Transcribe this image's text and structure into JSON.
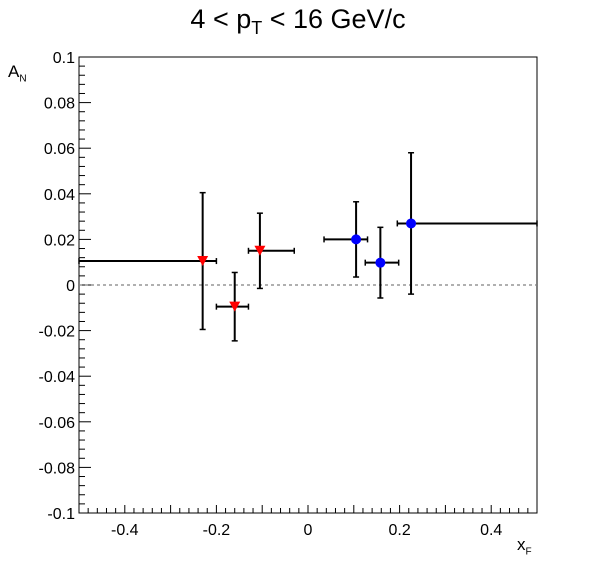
{
  "chart_data": {
    "type": "scatter",
    "title_parts": [
      "4 < p",
      "T",
      " < 16 GeV/c"
    ],
    "xlabel_parts": [
      "x",
      "F"
    ],
    "ylabel_parts": [
      "A",
      "N"
    ],
    "xlim": [
      -0.5,
      0.5
    ],
    "ylim": [
      -0.1,
      0.1
    ],
    "x_ticks": [
      -0.4,
      -0.2,
      0,
      0.2,
      0.4
    ],
    "x_tick_labels": [
      "-0.4",
      "-0.2",
      "0",
      "0.2",
      "0.4"
    ],
    "y_ticks": [
      -0.1,
      -0.08,
      -0.06,
      -0.04,
      -0.02,
      0,
      0.02,
      0.04,
      0.06,
      0.08,
      0.1
    ],
    "y_tick_labels": [
      "-0.1",
      "-0.08",
      "-0.06",
      "-0.04",
      "-0.02",
      "0",
      "0.02",
      "0.04",
      "0.06",
      "0.08",
      "0.1"
    ],
    "reference_line": {
      "y": 0,
      "style": "dashed",
      "color": "#808080"
    },
    "grid": false,
    "series": [
      {
        "marker": "triangle-down",
        "color": "#ff0000",
        "points": [
          {
            "x": -0.23,
            "y": 0.0105,
            "xerr_low": 0.27,
            "xerr_high": 0.03,
            "yerr": 0.03
          },
          {
            "x": -0.16,
            "y": -0.0095,
            "xerr_low": 0.04,
            "xerr_high": 0.03,
            "yerr": 0.015
          },
          {
            "x": -0.105,
            "y": 0.015,
            "xerr_low": 0.025,
            "xerr_high": 0.075,
            "yerr": 0.0165
          }
        ]
      },
      {
        "marker": "circle",
        "color": "#0000ff",
        "points": [
          {
            "x": 0.105,
            "y": 0.02,
            "xerr_low": 0.07,
            "xerr_high": 0.025,
            "yerr": 0.0165
          },
          {
            "x": 0.158,
            "y": 0.0098,
            "xerr_low": 0.033,
            "xerr_high": 0.04,
            "yerr": 0.0155
          },
          {
            "x": 0.225,
            "y": 0.027,
            "xerr_low": 0.03,
            "xerr_high": 0.275,
            "yerr": 0.031
          }
        ]
      }
    ]
  }
}
